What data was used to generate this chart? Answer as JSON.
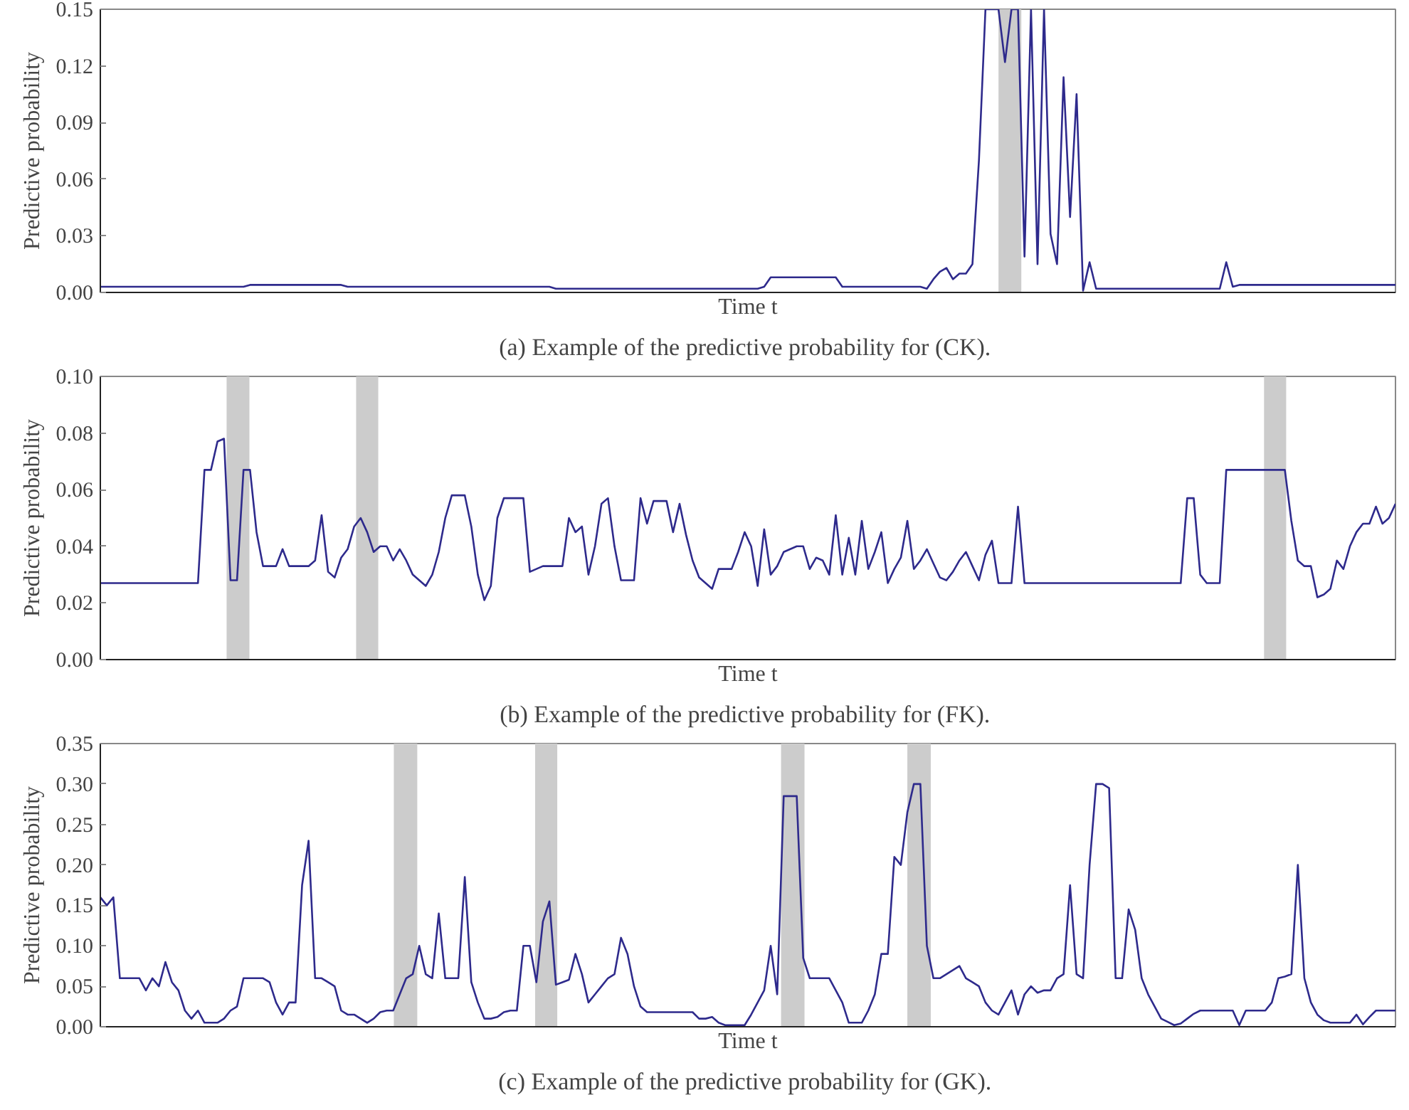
{
  "chart_data": [
    {
      "type": "line",
      "title": "(a)  Example of the predictive probability for (CK).",
      "xlabel": "Time t",
      "ylabel": "Predictive probability",
      "ylim": [
        0,
        0.15
      ],
      "yticks": [
        {
          "value": 0,
          "label": "0.00"
        },
        {
          "value": 0.03,
          "label": "0.03"
        },
        {
          "value": 0.06,
          "label": "0.06"
        },
        {
          "value": 0.09,
          "label": "0.09"
        },
        {
          "value": 0.12,
          "label": "0.12"
        },
        {
          "value": 0.15,
          "label": "0.15"
        }
      ],
      "tick_labels": "y",
      "grid": false,
      "categories": [
        null,
        null,
        null,
        null,
        null,
        null,
        null,
        null,
        null,
        null,
        null,
        null,
        null,
        null,
        null,
        null,
        null,
        null,
        null,
        null,
        null,
        null,
        null,
        null,
        null,
        null,
        null,
        null,
        null,
        null,
        null,
        null,
        null,
        null,
        null,
        null,
        null,
        null,
        null,
        null,
        null,
        null,
        null,
        null,
        null,
        null,
        null,
        null,
        null,
        null,
        null,
        null,
        null,
        null,
        null,
        null,
        null,
        null,
        null,
        null,
        null,
        null,
        null,
        null,
        null,
        null,
        null,
        null,
        null,
        null,
        null,
        null,
        null,
        null,
        null,
        null,
        null,
        null,
        null,
        null,
        null,
        null,
        null,
        null,
        null,
        null,
        null,
        null,
        null,
        null,
        null,
        null,
        null,
        null,
        null,
        null,
        null,
        null,
        null,
        null,
        null,
        null,
        null,
        null,
        null,
        null,
        null,
        null,
        null,
        null,
        null,
        null,
        null,
        null,
        null,
        null,
        null,
        null,
        null,
        null,
        null,
        null,
        null,
        null,
        null,
        null,
        null,
        null,
        null,
        null,
        null,
        null,
        null,
        null,
        null,
        null,
        null,
        null,
        null,
        null,
        null,
        null,
        null,
        null,
        null,
        null,
        null,
        null,
        null,
        null,
        null,
        null,
        null,
        null,
        null,
        null,
        null,
        null,
        null,
        null,
        null,
        null,
        null,
        null,
        null,
        null,
        null,
        null,
        null,
        null,
        null,
        null,
        null,
        null,
        null,
        null,
        null,
        null,
        null,
        null,
        null,
        null,
        null,
        null,
        null,
        null,
        null,
        null,
        null,
        null,
        null,
        null,
        null,
        null,
        null,
        null,
        null,
        null,
        null,
        null
      ],
      "series": [
        {
          "color": "#2e2a8c",
          "values": [
            0.003,
            0.003,
            0.003,
            0.003,
            0.003,
            0.003,
            0.003,
            0.003,
            0.003,
            0.003,
            0.003,
            0.003,
            0.003,
            0.003,
            0.003,
            0.003,
            0.003,
            0.003,
            0.003,
            0.003,
            0.003,
            0.003,
            0.003,
            0.004,
            0.004,
            0.004,
            0.004,
            0.004,
            0.004,
            0.004,
            0.004,
            0.004,
            0.004,
            0.004,
            0.004,
            0.004,
            0.004,
            0.004,
            0.003,
            0.003,
            0.003,
            0.003,
            0.003,
            0.003,
            0.003,
            0.003,
            0.003,
            0.003,
            0.003,
            0.003,
            0.003,
            0.003,
            0.003,
            0.003,
            0.003,
            0.003,
            0.003,
            0.003,
            0.003,
            0.003,
            0.003,
            0.003,
            0.003,
            0.003,
            0.003,
            0.003,
            0.003,
            0.003,
            0.003,
            0.003,
            0.002,
            0.002,
            0.002,
            0.002,
            0.002,
            0.002,
            0.002,
            0.002,
            0.002,
            0.002,
            0.002,
            0.002,
            0.002,
            0.002,
            0.002,
            0.002,
            0.002,
            0.002,
            0.002,
            0.002,
            0.002,
            0.002,
            0.002,
            0.002,
            0.002,
            0.002,
            0.002,
            0.002,
            0.002,
            0.002,
            0.002,
            0.002,
            0.003,
            0.008,
            0.008,
            0.008,
            0.008,
            0.008,
            0.008,
            0.008,
            0.008,
            0.008,
            0.008,
            0.008,
            0.003,
            0.003,
            0.003,
            0.003,
            0.003,
            0.003,
            0.003,
            0.003,
            0.003,
            0.003,
            0.003,
            0.003,
            0.003,
            0.002,
            0.007,
            0.011,
            0.013,
            0.007,
            0.01,
            0.01,
            0.015,
            0.07,
            0.15,
            0.15,
            0.15,
            0.122,
            0.15,
            0.15,
            0.019,
            0.15,
            0.015,
            0.15,
            0.031,
            0.015,
            0.114,
            0.04,
            0.105,
            0.001,
            0.016,
            0.002,
            0.002,
            0.002,
            0.002,
            0.002,
            0.002,
            0.002,
            0.002,
            0.002,
            0.002,
            0.002,
            0.002,
            0.002,
            0.002,
            0.002,
            0.002,
            0.002,
            0.002,
            0.002,
            0.002,
            0.016,
            0.003,
            0.004,
            0.004,
            0.004,
            0.004,
            0.004,
            0.004,
            0.004,
            0.004,
            0.004,
            0.004,
            0.004,
            0.004,
            0.004,
            0.004,
            0.004,
            0.004,
            0.004,
            0.004,
            0.004,
            0.004,
            0.004,
            0.004,
            0.004,
            0.004,
            0.004
          ]
        }
      ]
    },
    {
      "type": "line",
      "title": "(b)  Example of the predictive probability for (FK).",
      "xlabel": "Time t",
      "ylabel": "Predictive probability",
      "ylim": [
        0,
        0.1
      ],
      "yticks": [
        {
          "value": 0,
          "label": "0.00"
        },
        {
          "value": 0.02,
          "label": "0.02"
        },
        {
          "value": 0.04,
          "label": "0.04"
        },
        {
          "value": 0.06,
          "label": "0.06"
        },
        {
          "value": 0.08,
          "label": "0.08"
        },
        {
          "value": 0.1,
          "label": "0.10"
        }
      ],
      "tick_labels": "y",
      "grid": false,
      "categories": [
        null,
        null,
        null,
        null,
        null,
        null,
        null,
        null,
        null,
        null,
        null,
        null,
        null,
        null,
        null,
        null,
        null,
        null,
        null,
        null,
        null,
        null,
        null,
        null,
        null,
        null,
        null,
        null,
        null,
        null,
        null,
        null,
        null,
        null,
        null,
        null,
        null,
        null,
        null,
        null,
        null,
        null,
        null,
        null,
        null,
        null,
        null,
        null,
        null,
        null,
        null,
        null,
        null,
        null,
        null,
        null,
        null,
        null,
        null,
        null,
        null,
        null,
        null,
        null,
        null,
        null,
        null,
        null,
        null,
        null,
        null,
        null,
        null,
        null,
        null,
        null,
        null,
        null,
        null,
        null,
        null,
        null,
        null,
        null,
        null,
        null,
        null,
        null,
        null,
        null,
        null,
        null,
        null,
        null,
        null,
        null,
        null,
        null,
        null,
        null,
        null,
        null,
        null,
        null,
        null,
        null,
        null,
        null,
        null,
        null,
        null,
        null,
        null,
        null,
        null,
        null,
        null,
        null,
        null,
        null,
        null,
        null,
        null,
        null,
        null,
        null,
        null,
        null,
        null,
        null,
        null,
        null,
        null,
        null,
        null,
        null,
        null,
        null,
        null,
        null,
        null,
        null,
        null,
        null,
        null,
        null,
        null,
        null,
        null,
        null,
        null,
        null,
        null,
        null,
        null,
        null,
        null,
        null,
        null,
        null,
        null,
        null,
        null,
        null,
        null,
        null,
        null,
        null,
        null,
        null,
        null,
        null,
        null,
        null,
        null,
        null,
        null,
        null,
        null,
        null,
        null,
        null,
        null,
        null,
        null,
        null,
        null,
        null,
        null,
        null,
        null,
        null,
        null,
        null,
        null,
        null,
        null,
        null,
        null,
        null
      ],
      "series": [
        {
          "color": "#2e2a8c",
          "values": [
            0.027,
            0.027,
            0.027,
            0.027,
            0.027,
            0.027,
            0.027,
            0.027,
            0.027,
            0.027,
            0.027,
            0.027,
            0.027,
            0.027,
            0.027,
            0.027,
            0.067,
            0.067,
            0.077,
            0.078,
            0.028,
            0.028,
            0.067,
            0.067,
            0.045,
            0.033,
            0.033,
            0.033,
            0.039,
            0.033,
            0.033,
            0.033,
            0.033,
            0.035,
            0.051,
            0.031,
            0.029,
            0.036,
            0.039,
            0.047,
            0.05,
            0.045,
            0.038,
            0.04,
            0.04,
            0.035,
            0.039,
            0.035,
            0.03,
            0.028,
            0.026,
            0.03,
            0.038,
            0.05,
            0.058,
            0.058,
            0.058,
            0.047,
            0.03,
            0.021,
            0.026,
            0.05,
            0.057,
            0.057,
            0.057,
            0.057,
            0.031,
            0.032,
            0.033,
            0.033,
            0.033,
            0.033,
            0.05,
            0.045,
            0.047,
            0.03,
            0.04,
            0.055,
            0.057,
            0.04,
            0.028,
            0.028,
            0.028,
            0.057,
            0.048,
            0.056,
            0.056,
            0.056,
            0.045,
            0.055,
            0.044,
            0.035,
            0.029,
            0.027,
            0.025,
            0.032,
            0.032,
            0.032,
            0.038,
            0.045,
            0.04,
            0.026,
            0.046,
            0.03,
            0.033,
            0.038,
            0.039,
            0.04,
            0.04,
            0.032,
            0.036,
            0.035,
            0.03,
            0.051,
            0.03,
            0.043,
            0.03,
            0.049,
            0.032,
            0.038,
            0.045,
            0.027,
            0.032,
            0.036,
            0.049,
            0.032,
            0.035,
            0.039,
            0.034,
            0.029,
            0.028,
            0.031,
            0.035,
            0.038,
            0.033,
            0.028,
            0.037,
            0.042,
            0.027,
            0.027,
            0.027,
            0.054,
            0.027,
            0.027,
            0.027,
            0.027,
            0.027,
            0.027,
            0.027,
            0.027,
            0.027,
            0.027,
            0.027,
            0.027,
            0.027,
            0.027,
            0.027,
            0.027,
            0.027,
            0.027,
            0.027,
            0.027,
            0.027,
            0.027,
            0.027,
            0.027,
            0.027,
            0.057,
            0.057,
            0.03,
            0.027,
            0.027,
            0.027,
            0.067,
            0.067,
            0.067,
            0.067,
            0.067,
            0.067,
            0.067,
            0.067,
            0.067,
            0.067,
            0.049,
            0.035,
            0.033,
            0.033,
            0.022,
            0.023,
            0.025,
            0.035,
            0.032,
            0.04,
            0.045,
            0.048,
            0.048,
            0.054,
            0.048,
            0.05,
            0.055
          ]
        }
      ]
    },
    {
      "type": "line",
      "title": "(c)  Example of the predictive probability for (GK).",
      "xlabel": "Time t",
      "ylabel": "Predictive probability",
      "ylim": [
        0,
        0.35
      ],
      "yticks": [
        {
          "value": 0,
          "label": "0.00"
        },
        {
          "value": 0.05,
          "label": "0.05"
        },
        {
          "value": 0.1,
          "label": "0.10"
        },
        {
          "value": 0.15,
          "label": "0.15"
        },
        {
          "value": 0.2,
          "label": "0.20"
        },
        {
          "value": 0.25,
          "label": "0.25"
        },
        {
          "value": 0.3,
          "label": "0.30"
        },
        {
          "value": 0.35,
          "label": "0.35"
        }
      ],
      "tick_labels": "y",
      "grid": false,
      "categories": [
        null,
        null,
        null,
        null,
        null,
        null,
        null,
        null,
        null,
        null,
        null,
        null,
        null,
        null,
        null,
        null,
        null,
        null,
        null,
        null,
        null,
        null,
        null,
        null,
        null,
        null,
        null,
        null,
        null,
        null,
        null,
        null,
        null,
        null,
        null,
        null,
        null,
        null,
        null,
        null,
        null,
        null,
        null,
        null,
        null,
        null,
        null,
        null,
        null,
        null,
        null,
        null,
        null,
        null,
        null,
        null,
        null,
        null,
        null,
        null,
        null,
        null,
        null,
        null,
        null,
        null,
        null,
        null,
        null,
        null,
        null,
        null,
        null,
        null,
        null,
        null,
        null,
        null,
        null,
        null,
        null,
        null,
        null,
        null,
        null,
        null,
        null,
        null,
        null,
        null,
        null,
        null,
        null,
        null,
        null,
        null,
        null,
        null,
        null,
        null,
        null,
        null,
        null,
        null,
        null,
        null,
        null,
        null,
        null,
        null,
        null,
        null,
        null,
        null,
        null,
        null,
        null,
        null,
        null,
        null,
        null,
        null,
        null,
        null,
        null,
        null,
        null,
        null,
        null,
        null,
        null,
        null,
        null,
        null,
        null,
        null,
        null,
        null,
        null,
        null,
        null,
        null,
        null,
        null,
        null,
        null,
        null,
        null,
        null,
        null,
        null,
        null,
        null,
        null,
        null,
        null,
        null,
        null,
        null,
        null,
        null,
        null,
        null,
        null,
        null,
        null,
        null,
        null,
        null,
        null,
        null,
        null,
        null,
        null,
        null,
        null,
        null,
        null,
        null,
        null,
        null,
        null,
        null,
        null,
        null,
        null,
        null,
        null,
        null,
        null,
        null,
        null,
        null,
        null,
        null,
        null,
        null,
        null,
        null,
        null
      ],
      "series": [
        {
          "color": "#2e2a8c",
          "values": [
            0.16,
            0.15,
            0.16,
            0.06,
            0.06,
            0.06,
            0.06,
            0.045,
            0.06,
            0.05,
            0.08,
            0.055,
            0.045,
            0.02,
            0.01,
            0.02,
            0.005,
            0.005,
            0.005,
            0.01,
            0.02,
            0.025,
            0.06,
            0.06,
            0.06,
            0.06,
            0.055,
            0.03,
            0.015,
            0.03,
            0.03,
            0.175,
            0.23,
            0.06,
            0.06,
            0.055,
            0.05,
            0.02,
            0.015,
            0.015,
            0.01,
            0.005,
            0.01,
            0.018,
            0.02,
            0.02,
            0.04,
            0.06,
            0.065,
            0.1,
            0.065,
            0.06,
            0.14,
            0.06,
            0.06,
            0.06,
            0.185,
            0.055,
            0.03,
            0.01,
            0.01,
            0.012,
            0.018,
            0.02,
            0.02,
            0.1,
            0.1,
            0.055,
            0.13,
            0.155,
            0.052,
            0.055,
            0.058,
            0.09,
            0.065,
            0.03,
            0.04,
            0.05,
            0.06,
            0.065,
            0.11,
            0.09,
            0.05,
            0.025,
            0.018,
            0.018,
            0.018,
            0.018,
            0.018,
            0.018,
            0.018,
            0.018,
            0.01,
            0.01,
            0.012,
            0.005,
            0.002,
            0.002,
            0.002,
            0.002,
            0.015,
            0.03,
            0.045,
            0.1,
            0.04,
            0.285,
            0.285,
            0.285,
            0.085,
            0.06,
            0.06,
            0.06,
            0.06,
            0.045,
            0.03,
            0.005,
            0.005,
            0.005,
            0.02,
            0.04,
            0.09,
            0.09,
            0.21,
            0.2,
            0.265,
            0.3,
            0.3,
            0.1,
            0.06,
            0.06,
            0.065,
            0.07,
            0.075,
            0.06,
            0.055,
            0.05,
            0.03,
            0.02,
            0.015,
            0.03,
            0.045,
            0.015,
            0.04,
            0.05,
            0.042,
            0.045,
            0.045,
            0.06,
            0.065,
            0.175,
            0.065,
            0.06,
            0.2,
            0.3,
            0.3,
            0.295,
            0.06,
            0.06,
            0.145,
            0.12,
            0.06,
            0.04,
            0.025,
            0.01,
            0.006,
            0.002,
            0.004,
            0.01,
            0.016,
            0.02,
            0.02,
            0.02,
            0.02,
            0.02,
            0.02,
            0.002,
            0.02,
            0.02,
            0.02,
            0.02,
            0.03,
            0.06,
            0.062,
            0.065,
            0.2,
            0.06,
            0.03,
            0.015,
            0.008,
            0.005,
            0.005,
            0.005,
            0.005,
            0.015,
            0.003,
            0.012,
            0.02,
            0.02,
            0.02,
            0.02
          ]
        }
      ]
    }
  ]
}
